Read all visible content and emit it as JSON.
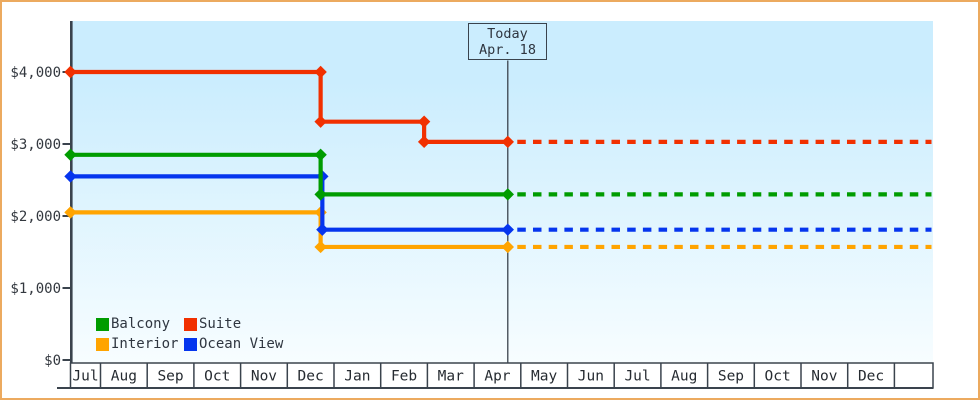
{
  "ui_colors": {
    "frame_border": "#ecaa5f",
    "axis": "#3a434d",
    "text": "#33383f",
    "month_text": "#262b31",
    "plot_bg_top": "#cbedfe",
    "plot_bg_bottom": "#f7fdff",
    "month_row_bg": "#ffffff"
  },
  "chart_data": {
    "type": "line",
    "line_style": "step",
    "title": "",
    "xlabel": "",
    "ylabel": "",
    "x_axis_months": [
      "Jul",
      "Aug",
      "Sep",
      "Oct",
      "Nov",
      "Dec",
      "Jan",
      "Feb",
      "Mar",
      "Apr",
      "May",
      "Jun",
      "Jul",
      "Aug",
      "Sep",
      "Oct",
      "Nov",
      "Dec"
    ],
    "x_axis_trailing_empty_cell": true,
    "y_ticks": [
      {
        "label": "$0",
        "value": 0
      },
      {
        "label": "$1,000",
        "value": 1000
      },
      {
        "label": "$2,000",
        "value": 2000
      },
      {
        "label": "$3,000",
        "value": 3000
      },
      {
        "label": "$4,000",
        "value": 4000
      }
    ],
    "ylim": [
      0,
      4700
    ],
    "grid": "off",
    "legend_position": "bottom-left inside plot",
    "today": {
      "label_line1": "Today",
      "label_line2": "Apr. 18",
      "frac_of_xaxis": 0.507
    },
    "series": [
      {
        "name": "Balcony",
        "color": "#009c00",
        "steps": [
          {
            "value": 2850,
            "from_frac": 0.0,
            "to_frac": 0.29,
            "period": "mid-Jul to late Dec"
          },
          {
            "value": 2300,
            "from_frac": 0.29,
            "to_frac": 0.507,
            "period": "late Dec to Apr 18"
          }
        ],
        "projected_value": 2300
      },
      {
        "name": "Suite",
        "color": "#f13000",
        "steps": [
          {
            "value": 4000,
            "from_frac": 0.0,
            "to_frac": 0.29,
            "period": "mid-Jul to late Dec"
          },
          {
            "value": 3310,
            "from_frac": 0.29,
            "to_frac": 0.41,
            "period": "late Dec to late Feb"
          },
          {
            "value": 3030,
            "from_frac": 0.41,
            "to_frac": 0.507,
            "period": "late Feb to Apr 18"
          }
        ],
        "projected_value": 3030
      },
      {
        "name": "Interior",
        "color": "#ffa400",
        "steps": [
          {
            "value": 2050,
            "from_frac": 0.0,
            "to_frac": 0.29,
            "period": "mid-Jul to late Dec"
          },
          {
            "value": 1570,
            "from_frac": 0.29,
            "to_frac": 0.507,
            "period": "late Dec to Apr 18"
          }
        ],
        "projected_value": 1570
      },
      {
        "name": "Ocean View",
        "color": "#0535ee",
        "steps": [
          {
            "value": 2550,
            "from_frac": 0.0,
            "to_frac": 0.292,
            "period": "mid-Jul to late Dec"
          },
          {
            "value": 1810,
            "from_frac": 0.292,
            "to_frac": 0.507,
            "period": "late Dec to Apr 18"
          }
        ],
        "projected_value": 1810
      }
    ]
  }
}
